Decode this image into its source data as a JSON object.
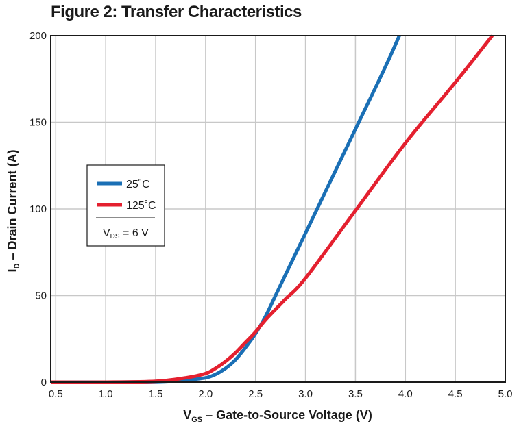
{
  "title": "Figure 2: Transfer Characteristics",
  "colors": {
    "series_25C": "#1a6fb5",
    "series_125C": "#e4202f",
    "grid": "#c8c8c8",
    "axis": "#1a1a1a"
  },
  "chart_data": {
    "type": "line",
    "title": "Figure 2: Transfer Characteristics",
    "xlabel": {
      "main": "V",
      "sub": "GS",
      "rest": " – Gate-to-Source Voltage (V)"
    },
    "ylabel": {
      "main": "I",
      "sub": "D",
      "rest": " – Drain Current (A)"
    },
    "xlim": [
      0.45,
      5.0
    ],
    "ylim": [
      0,
      200
    ],
    "xticks": [
      "0.5",
      "1.0",
      "1.5",
      "2.0",
      "2.5",
      "3.0",
      "3.5",
      "4.0",
      "4.5",
      "5.0"
    ],
    "yticks": [
      "0",
      "50",
      "100",
      "150",
      "200"
    ],
    "grid": true,
    "legend": {
      "placement": "middle-left",
      "condition": {
        "main": "V",
        "sub": "DS",
        "rest": " = 6 V"
      }
    },
    "series": [
      {
        "name": "25˚C",
        "color": "#1a6fb5",
        "x": [
          0.45,
          1.0,
          1.5,
          1.8,
          2.0,
          2.1,
          2.2,
          2.3,
          2.4,
          2.5,
          2.6,
          2.7,
          2.8,
          3.0,
          3.2,
          3.5,
          3.8,
          3.94
        ],
        "y": [
          0,
          0,
          0.3,
          1.2,
          2.5,
          4.5,
          8,
          13,
          20,
          28,
          38,
          50,
          62,
          86,
          110,
          146,
          182,
          200
        ]
      },
      {
        "name": "125˚C",
        "color": "#e4202f",
        "x": [
          0.45,
          1.0,
          1.5,
          1.8,
          2.0,
          2.1,
          2.2,
          2.3,
          2.4,
          2.5,
          2.6,
          2.7,
          2.8,
          3.0,
          3.5,
          4.0,
          4.5,
          4.87
        ],
        "y": [
          0,
          0,
          0.5,
          2.5,
          5,
          8,
          12,
          17,
          23,
          29,
          36,
          42,
          48,
          60,
          99,
          138,
          173,
          200
        ]
      }
    ]
  }
}
